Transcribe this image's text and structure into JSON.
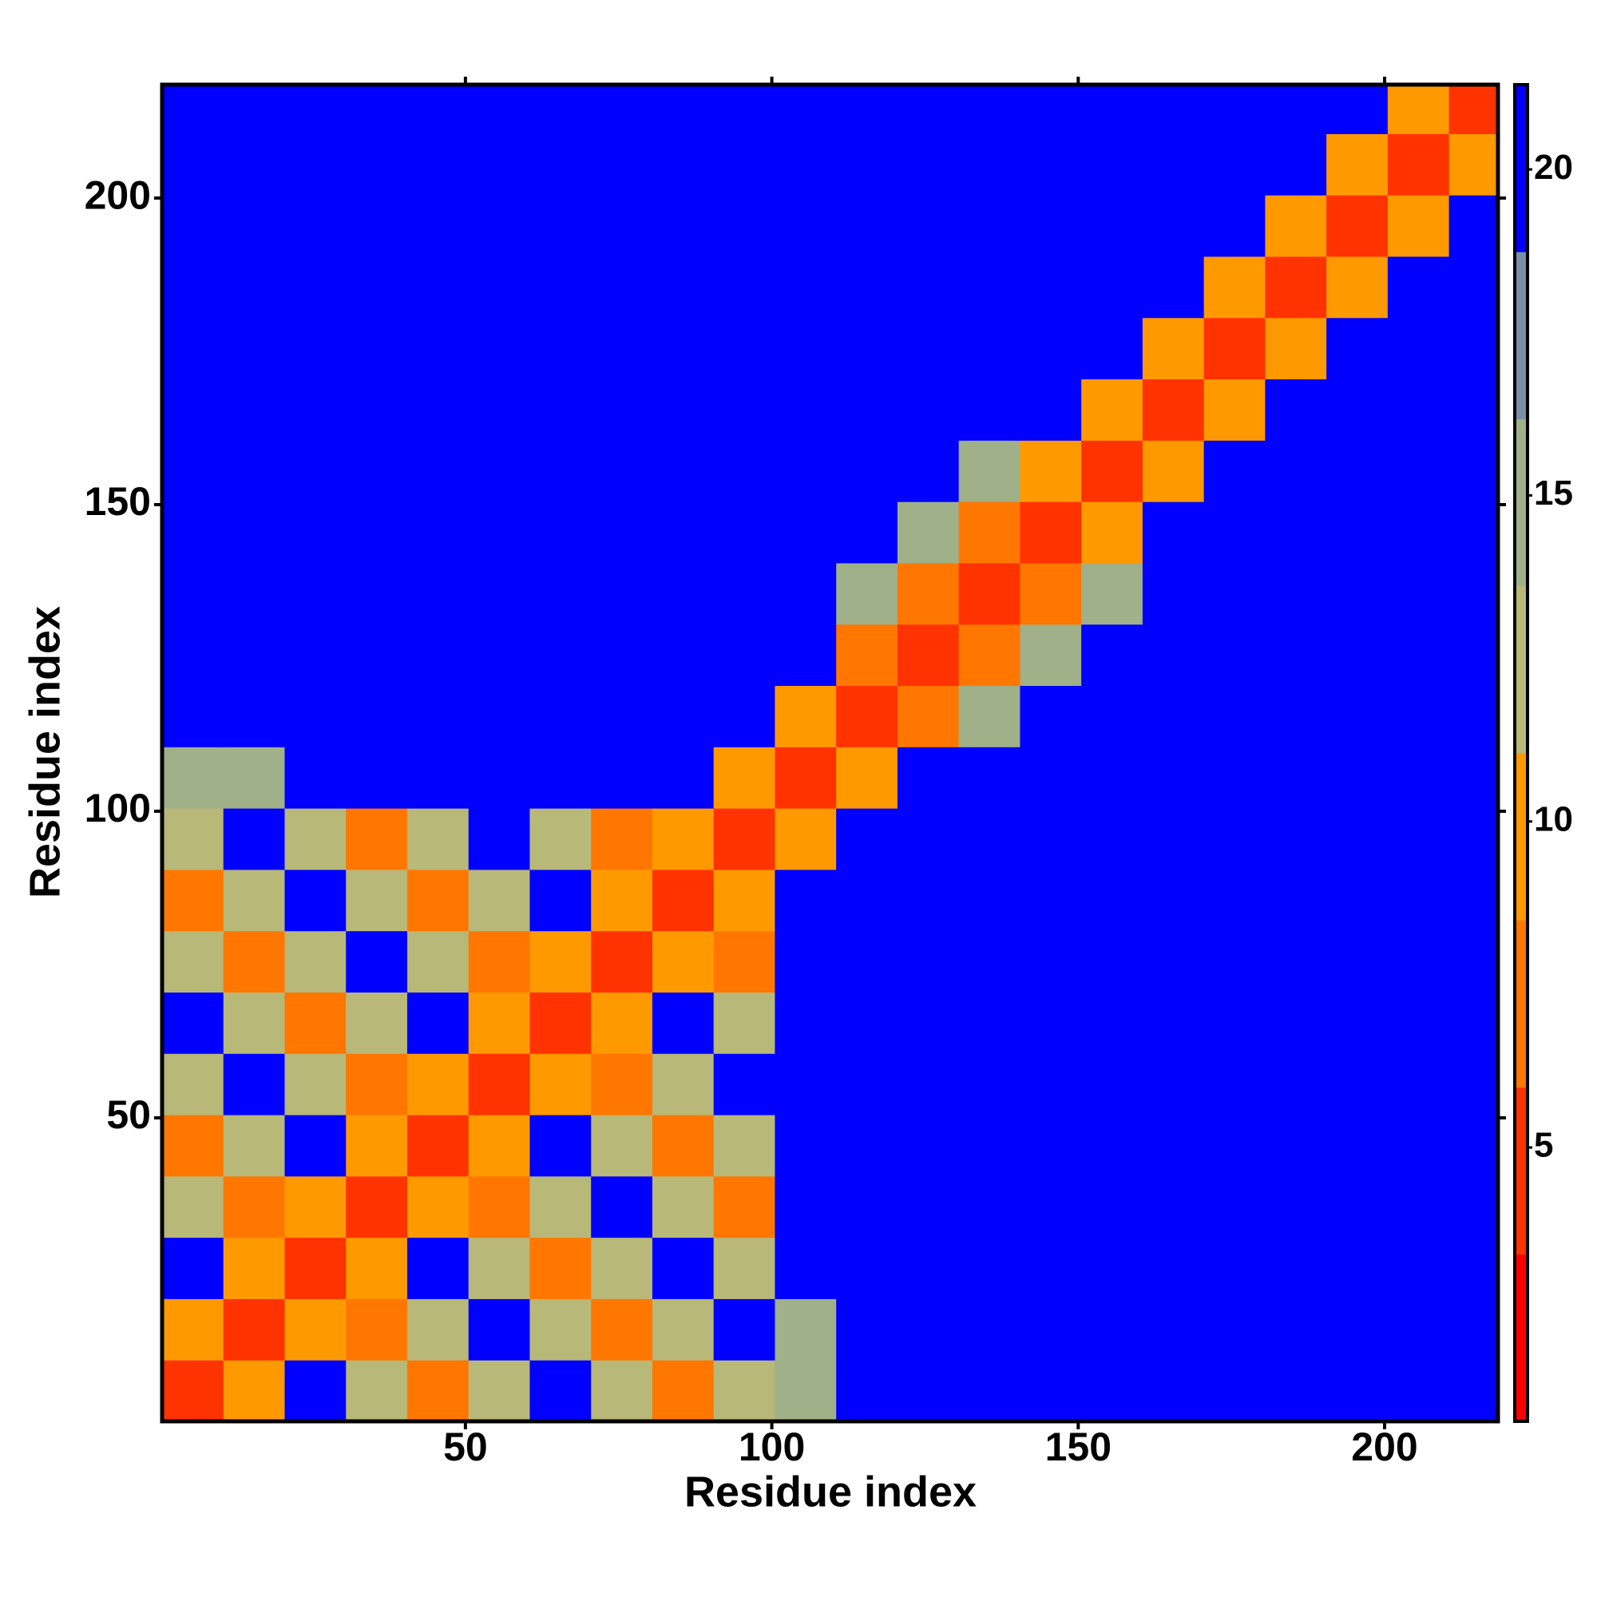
{
  "chart_data": {
    "type": "heatmap",
    "xlabel": "Residue index",
    "ylabel": "Residue index",
    "bins": [
      0.5,
      10.5,
      20.5,
      30.5,
      40.5,
      50.5,
      60.5,
      70.5,
      80.5,
      90.5,
      100.5,
      110.5,
      120.5,
      130.5,
      140.5,
      150.5,
      160.5,
      170.5,
      180.5,
      190.5,
      200.5,
      210.5,
      218.5
    ],
    "xlim": [
      0.5,
      218.5
    ],
    "ylim": [
      0.5,
      218.5
    ],
    "xticks": [
      50,
      100,
      150,
      200
    ],
    "yticks": [
      50,
      100,
      150,
      200
    ],
    "clim": [
      0.8,
      21.3
    ],
    "cticks": [
      5,
      10,
      15,
      20
    ],
    "colors": [
      "#ff0000",
      "#ff3300",
      "#ff7700",
      "#ff9900",
      "#b8b878",
      "#a0b088",
      "#7890a8",
      "#0000ff"
    ],
    "z": [
      [
        4,
        9,
        21,
        12,
        8,
        12,
        21,
        12,
        8,
        12,
        14,
        21,
        21,
        21,
        21,
        21,
        21,
        21,
        21,
        21,
        21,
        21
      ],
      [
        9,
        4,
        9,
        8,
        12,
        21,
        12,
        8,
        12,
        21,
        14,
        21,
        21,
        21,
        21,
        21,
        21,
        21,
        21,
        21,
        21,
        21
      ],
      [
        21,
        9,
        4,
        9,
        21,
        12,
        8,
        12,
        21,
        12,
        21,
        21,
        21,
        21,
        21,
        21,
        21,
        21,
        21,
        21,
        21,
        21
      ],
      [
        12,
        8,
        9,
        4,
        9,
        8,
        12,
        21,
        12,
        8,
        21,
        21,
        21,
        21,
        21,
        21,
        21,
        21,
        21,
        21,
        21,
        21
      ],
      [
        8,
        12,
        21,
        9,
        4,
        9,
        21,
        12,
        8,
        12,
        21,
        21,
        21,
        21,
        21,
        21,
        21,
        21,
        21,
        21,
        21,
        21
      ],
      [
        12,
        21,
        12,
        8,
        9,
        4,
        9,
        8,
        12,
        21,
        21,
        21,
        21,
        21,
        21,
        21,
        21,
        21,
        21,
        21,
        21,
        21
      ],
      [
        21,
        12,
        8,
        12,
        21,
        9,
        4,
        9,
        21,
        12,
        21,
        21,
        21,
        21,
        21,
        21,
        21,
        21,
        21,
        21,
        21,
        21
      ],
      [
        12,
        8,
        12,
        21,
        12,
        8,
        9,
        4,
        9,
        8,
        21,
        21,
        21,
        21,
        21,
        21,
        21,
        21,
        21,
        21,
        21,
        21
      ],
      [
        8,
        12,
        21,
        12,
        8,
        12,
        21,
        9,
        4,
        9,
        21,
        21,
        21,
        21,
        21,
        21,
        21,
        21,
        21,
        21,
        21,
        21
      ],
      [
        12,
        21,
        12,
        8,
        12,
        21,
        12,
        8,
        9,
        4,
        9,
        21,
        21,
        21,
        21,
        21,
        21,
        21,
        21,
        21,
        21,
        21
      ],
      [
        14,
        14,
        21,
        21,
        21,
        21,
        21,
        21,
        21,
        9,
        4,
        9,
        21,
        21,
        21,
        21,
        21,
        21,
        21,
        21,
        21,
        21
      ],
      [
        21,
        21,
        21,
        21,
        21,
        21,
        21,
        21,
        21,
        21,
        9,
        4,
        8,
        15,
        21,
        21,
        21,
        21,
        21,
        21,
        21,
        21
      ],
      [
        21,
        21,
        21,
        21,
        21,
        21,
        21,
        21,
        21,
        21,
        21,
        8,
        4,
        8,
        15,
        21,
        21,
        21,
        21,
        21,
        21,
        21
      ],
      [
        21,
        21,
        21,
        21,
        21,
        21,
        21,
        21,
        21,
        21,
        21,
        15,
        8,
        4,
        8,
        15,
        21,
        21,
        21,
        21,
        21,
        21
      ],
      [
        21,
        21,
        21,
        21,
        21,
        21,
        21,
        21,
        21,
        21,
        21,
        21,
        15,
        8,
        4,
        9,
        21,
        21,
        21,
        21,
        21,
        21
      ],
      [
        21,
        21,
        21,
        21,
        21,
        21,
        21,
        21,
        21,
        21,
        21,
        21,
        21,
        15,
        9,
        4,
        9,
        21,
        21,
        21,
        21,
        21
      ],
      [
        21,
        21,
        21,
        21,
        21,
        21,
        21,
        21,
        21,
        21,
        21,
        21,
        21,
        21,
        21,
        9,
        4,
        9,
        21,
        21,
        21,
        21
      ],
      [
        21,
        21,
        21,
        21,
        21,
        21,
        21,
        21,
        21,
        21,
        21,
        21,
        21,
        21,
        21,
        21,
        9,
        4,
        9,
        21,
        21,
        21
      ],
      [
        21,
        21,
        21,
        21,
        21,
        21,
        21,
        21,
        21,
        21,
        21,
        21,
        21,
        21,
        21,
        21,
        21,
        9,
        4,
        9,
        21,
        21
      ],
      [
        21,
        21,
        21,
        21,
        21,
        21,
        21,
        21,
        21,
        21,
        21,
        21,
        21,
        21,
        21,
        21,
        21,
        21,
        9,
        4,
        9,
        21
      ],
      [
        21,
        21,
        21,
        21,
        21,
        21,
        21,
        21,
        21,
        21,
        21,
        21,
        21,
        21,
        21,
        21,
        21,
        21,
        21,
        9,
        4,
        9
      ],
      [
        21,
        21,
        21,
        21,
        21,
        21,
        21,
        21,
        21,
        21,
        21,
        21,
        21,
        21,
        21,
        21,
        21,
        21,
        21,
        21,
        9,
        4
      ]
    ]
  }
}
